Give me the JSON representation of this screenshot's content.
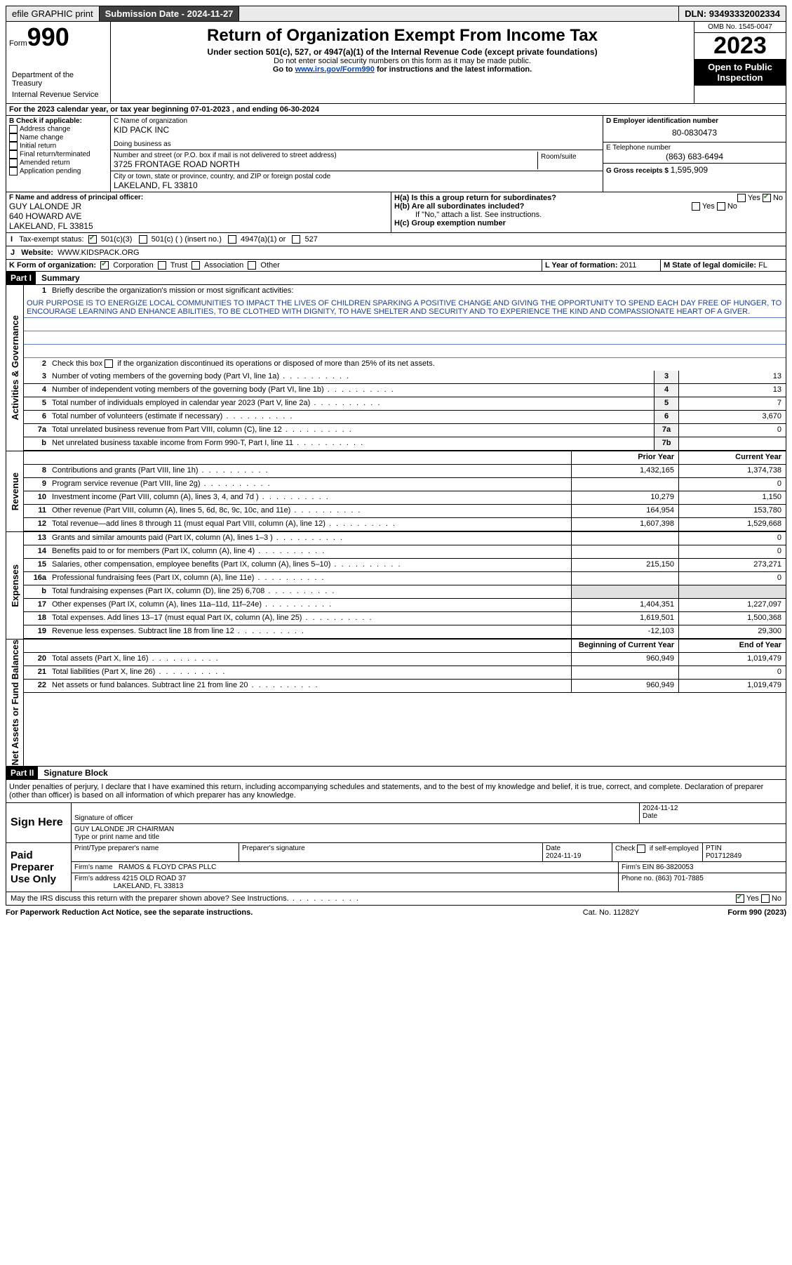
{
  "topbar": {
    "efile": "efile GRAPHIC print",
    "submission_label": "Submission Date - ",
    "submission_date": "2024-11-27",
    "dln_label": "DLN: ",
    "dln": "93493332002334"
  },
  "header": {
    "form_word": "Form",
    "form_num": "990",
    "title": "Return of Organization Exempt From Income Tax",
    "subtitle": "Under section 501(c), 527, or 4947(a)(1) of the Internal Revenue Code (except private foundations)",
    "ssn_note": "Do not enter social security numbers on this form as it may be made public.",
    "goto": "Go to ",
    "goto_url": "www.irs.gov/Form990",
    "goto_tail": " for instructions and the latest information.",
    "omb": "OMB No. 1545-0047",
    "year": "2023",
    "open": "Open to Public Inspection",
    "dept1": "Department of the Treasury",
    "dept2": "Internal Revenue Service"
  },
  "line_a": "For the 2023 calendar year, or tax year beginning 07-01-2023   , and ending 06-30-2024",
  "box_b": {
    "label": "B Check if applicable:",
    "opts": [
      "Address change",
      "Name change",
      "Initial return",
      "Final return/terminated",
      "Amended return",
      "Application pending"
    ]
  },
  "box_c": {
    "name_label": "C Name of organization",
    "name": "KID PACK INC",
    "dba_label": "Doing business as",
    "street_label": "Number and street (or P.O. box if mail is not delivered to street address)",
    "room_label": "Room/suite",
    "street": "3725 FRONTAGE ROAD NORTH",
    "city_label": "City or town, state or province, country, and ZIP or foreign postal code",
    "city": "LAKELAND, FL  33810"
  },
  "box_d": {
    "label": "D Employer identification number",
    "value": "80-0830473"
  },
  "box_e": {
    "label": "E Telephone number",
    "value": "(863) 683-6494"
  },
  "box_g": {
    "label": "G Gross receipts $ ",
    "value": "1,595,909"
  },
  "box_f": {
    "label": "F  Name and address of principal officer:",
    "line1": "GUY LALONDE JR",
    "line2": "640 HOWARD AVE",
    "line3": "LAKELAND, FL  33815"
  },
  "box_h": {
    "a": "H(a)  Is this a group return for subordinates?",
    "b": "H(b)  Are all subordinates included?",
    "b_note": "If \"No,\" attach a list. See instructions.",
    "c": "H(c)  Group exemption number ",
    "yes": "Yes",
    "no": "No"
  },
  "line_i": {
    "label": "Tax-exempt status:",
    "opt1": "501(c)(3)",
    "opt2": "501(c) (   ) (insert no.)",
    "opt3": "4947(a)(1) or",
    "opt4": "527"
  },
  "line_j": {
    "label": "Website:",
    "value": "WWW.KIDSPACK.ORG"
  },
  "line_k": {
    "label": "K Form of organization:",
    "opts": [
      "Corporation",
      "Trust",
      "Association",
      "Other"
    ]
  },
  "line_l": {
    "label": "L Year of formation: ",
    "value": "2011"
  },
  "line_m": {
    "label": "M State of legal domicile: ",
    "value": "FL"
  },
  "parts": {
    "part1": "Part I",
    "summary": "Summary",
    "part2": "Part II",
    "sig": "Signature Block"
  },
  "sections": {
    "gov": "Activities & Governance",
    "rev": "Revenue",
    "exp": "Expenses",
    "net": "Net Assets or Fund Balances"
  },
  "summary": {
    "q1": "Briefly describe the organization's mission or most significant activities:",
    "mission": "OUR PURPOSE IS TO ENERGIZE LOCAL COMMUNITIES TO IMPACT THE LIVES OF CHILDREN SPARKING A POSITIVE CHANGE AND GIVING THE OPPORTUNITY TO SPEND EACH DAY FREE OF HUNGER, TO ENCOURAGE LEARNING AND ENHANCE ABILITIES, TO BE CLOTHED WITH DIGNITY, TO HAVE SHELTER AND SECURITY AND TO EXPERIENCE THE KIND AND COMPASSIONATE HEART OF A GIVER.",
    "q2": "Check this box      if the organization discontinued its operations or disposed of more than 25% of its net assets.",
    "rows_gov": [
      {
        "n": "3",
        "d": "Number of voting members of the governing body (Part VI, line 1a)",
        "b": "3",
        "v": "13"
      },
      {
        "n": "4",
        "d": "Number of independent voting members of the governing body (Part VI, line 1b)",
        "b": "4",
        "v": "13"
      },
      {
        "n": "5",
        "d": "Total number of individuals employed in calendar year 2023 (Part V, line 2a)",
        "b": "5",
        "v": "7"
      },
      {
        "n": "6",
        "d": "Total number of volunteers (estimate if necessary)",
        "b": "6",
        "v": "3,670"
      },
      {
        "n": "7a",
        "d": "Total unrelated business revenue from Part VIII, column (C), line 12",
        "b": "7a",
        "v": "0"
      },
      {
        "n": "b",
        "d": "Net unrelated business taxable income from Form 990-T, Part I, line 11",
        "b": "7b",
        "v": ""
      }
    ],
    "header_prior": "Prior Year",
    "header_current": "Current Year",
    "rows_rev": [
      {
        "n": "8",
        "d": "Contributions and grants (Part VIII, line 1h)",
        "p": "1,432,165",
        "c": "1,374,738"
      },
      {
        "n": "9",
        "d": "Program service revenue (Part VIII, line 2g)",
        "p": "",
        "c": "0"
      },
      {
        "n": "10",
        "d": "Investment income (Part VIII, column (A), lines 3, 4, and 7d )",
        "p": "10,279",
        "c": "1,150"
      },
      {
        "n": "11",
        "d": "Other revenue (Part VIII, column (A), lines 5, 6d, 8c, 9c, 10c, and 11e)",
        "p": "164,954",
        "c": "153,780"
      },
      {
        "n": "12",
        "d": "Total revenue—add lines 8 through 11 (must equal Part VIII, column (A), line 12)",
        "p": "1,607,398",
        "c": "1,529,668"
      }
    ],
    "rows_exp": [
      {
        "n": "13",
        "d": "Grants and similar amounts paid (Part IX, column (A), lines 1–3 )",
        "p": "",
        "c": "0"
      },
      {
        "n": "14",
        "d": "Benefits paid to or for members (Part IX, column (A), line 4)",
        "p": "",
        "c": "0"
      },
      {
        "n": "15",
        "d": "Salaries, other compensation, employee benefits (Part IX, column (A), lines 5–10)",
        "p": "215,150",
        "c": "273,271"
      },
      {
        "n": "16a",
        "d": "Professional fundraising fees (Part IX, column (A), line 11e)",
        "p": "",
        "c": "0"
      },
      {
        "n": "b",
        "d": "Total fundraising expenses (Part IX, column (D), line 25) 6,708",
        "p": "__GRAY__",
        "c": "__GRAY__"
      },
      {
        "n": "17",
        "d": "Other expenses (Part IX, column (A), lines 11a–11d, 11f–24e)",
        "p": "1,404,351",
        "c": "1,227,097"
      },
      {
        "n": "18",
        "d": "Total expenses. Add lines 13–17 (must equal Part IX, column (A), line 25)",
        "p": "1,619,501",
        "c": "1,500,368"
      },
      {
        "n": "19",
        "d": "Revenue less expenses. Subtract line 18 from line 12",
        "p": "-12,103",
        "c": "29,300"
      }
    ],
    "header_begin": "Beginning of Current Year",
    "header_end": "End of Year",
    "rows_net": [
      {
        "n": "20",
        "d": "Total assets (Part X, line 16)",
        "p": "960,949",
        "c": "1,019,479"
      },
      {
        "n": "21",
        "d": "Total liabilities (Part X, line 26)",
        "p": "",
        "c": "0"
      },
      {
        "n": "22",
        "d": "Net assets or fund balances. Subtract line 21 from line 20",
        "p": "960,949",
        "c": "1,019,479"
      }
    ]
  },
  "sig_block": {
    "perjury": "Under penalties of perjury, I declare that I have examined this return, including accompanying schedules and statements, and to the best of my knowledge and belief, it is true, correct, and complete. Declaration of preparer (other than officer) is based on all information of which preparer has any knowledge.",
    "sign_here": "Sign Here",
    "officer_sig": "Signature of officer",
    "officer_name": "GUY LALONDE JR  CHAIRMAN",
    "officer_type": "Type or print name and title",
    "date_label": "Date",
    "date1": "2024-11-12",
    "paid": "Paid Preparer Use Only",
    "prep_name_label": "Print/Type preparer's name",
    "prep_sig_label": "Preparer's signature",
    "prep_date": "2024-11-19",
    "check_self": "Check        if self-employed",
    "ptin_label": "PTIN",
    "ptin": "P01712849",
    "firm_name_label": "Firm's name",
    "firm_name": "RAMOS & FLOYD CPAS PLLC",
    "firm_ein_label": "Firm's EIN ",
    "firm_ein": "86-3820053",
    "firm_addr_label": "Firm's address",
    "firm_addr1": "4215 OLD ROAD 37",
    "firm_addr2": "LAKELAND, FL  33813",
    "phone_label": "Phone no. ",
    "phone": "(863) 701-7885",
    "discuss": "May the IRS discuss this return with the preparer shown above? See Instructions.",
    "yes": "Yes",
    "no": "No"
  },
  "footer": {
    "left": "For Paperwork Reduction Act Notice, see the separate instructions.",
    "mid": "Cat. No. 11282Y",
    "right": "Form 990 (2023)"
  }
}
